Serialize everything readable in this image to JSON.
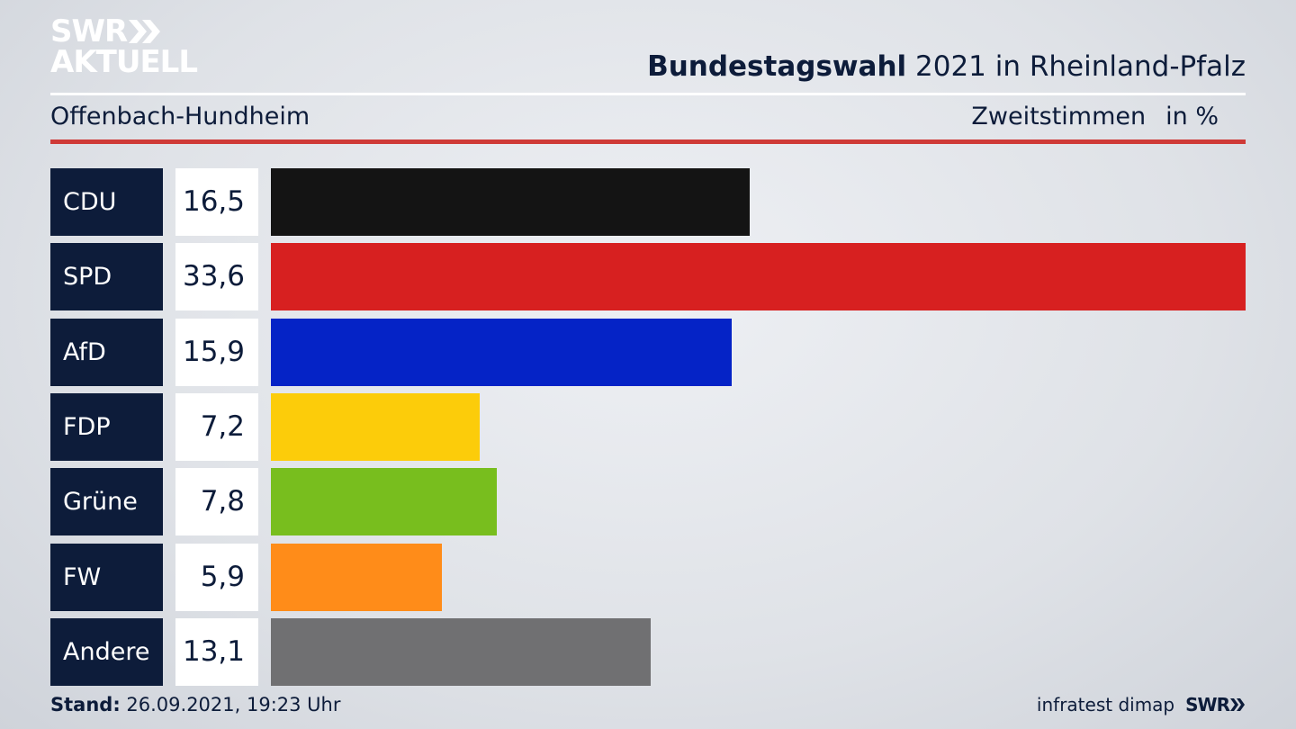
{
  "logo": {
    "line1": "SWR",
    "line2": "AKTUELL"
  },
  "header": {
    "title_bold": "Bundestagswahl",
    "title_rest": " 2021 in Rheinland-Pfalz",
    "subtitle": "Offenbach-Hundheim",
    "measure": "Zweitstimmen",
    "unit": "in %"
  },
  "chart_data": {
    "type": "bar",
    "orientation": "horizontal",
    "categories": [
      "CDU",
      "SPD",
      "AfD",
      "FDP",
      "Grüne",
      "FW",
      "Andere"
    ],
    "values": [
      16.5,
      33.6,
      15.9,
      7.2,
      7.8,
      5.9,
      13.1
    ],
    "value_labels": [
      "16,5",
      "33,6",
      "15,9",
      "7,2",
      "7,8",
      "5,9",
      "13,1"
    ],
    "colors": [
      "#141414",
      "#d72020",
      "#0523c6",
      "#fccc0a",
      "#78be1e",
      "#ff8c19",
      "#707072"
    ],
    "xlim": [
      0,
      33.6
    ],
    "grid": false
  },
  "footer": {
    "stand_label": "Stand:",
    "stand_value": " 26.09.2021, 19:23 Uhr",
    "source": "infratest dimap",
    "brand": "SWR"
  }
}
